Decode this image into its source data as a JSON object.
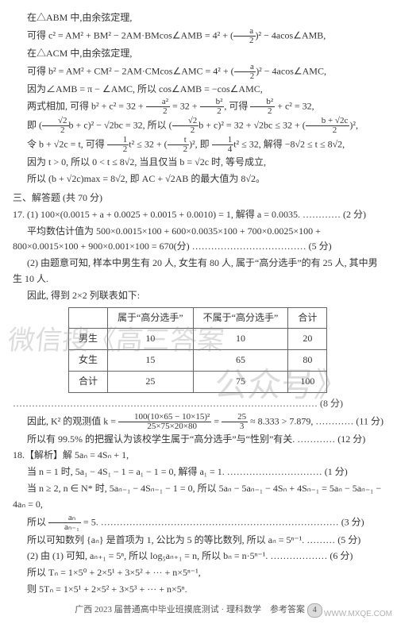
{
  "geometry": {
    "l1": "在△ABM 中,由余弦定理,",
    "l2_pre": "可得 c² = AM² + BM² − 2AM·BMcos∠AMB = 4² + (",
    "l2_frac_n": "a",
    "l2_frac_d": "2",
    "l2_post": ")² − 4acos∠AMB,",
    "l3": "在△ACM 中,由余弦定理,",
    "l4_pre": "可得 b² = AM² + CM² − 2AM·CMcos∠AMC = 4² + (",
    "l4_frac_n": "a",
    "l4_frac_d": "2",
    "l4_post": ")² − 4acos∠AMC,",
    "l5": "因为∠AMB = π − ∠AMC, 所以 cos∠AMB = −cos∠AMC,",
    "l6_pre": "两式相加, 可得 b² + c² = 32 + ",
    "l6_f1n": "a²",
    "l6_f1d": "2",
    "l6_mid": " = 32 + ",
    "l6_f2n": "b²",
    "l6_f2d": "2",
    "l6_post": ", 可得 ",
    "l6_f3n": "b²",
    "l6_f3d": "2",
    "l6_end": " + c² = 32,",
    "l7_pre": "即 (",
    "l7_f1n": "√2",
    "l7_f1d": "2",
    "l7_a": "b + c)² − √2bc = 32, 所以 (",
    "l7_f2n": "√2",
    "l7_f2d": "2",
    "l7_b": "b + c)² = 32 + √2bc ≤ 32 + (",
    "l7_f3n": "b + √2c",
    "l7_f3d": "2",
    "l7_c": ")²,",
    "l8_pre": "令 b + √2c = t, 可得 ",
    "l8_f1n": "1",
    "l8_f1d": "2",
    "l8_a": "t² ≤ 32 + (",
    "l8_f2n": "t",
    "l8_f2d": "2",
    "l8_b": ")², 即 ",
    "l8_f3n": "1",
    "l8_f3d": "4",
    "l8_c": "t² ≤ 32, 解得 −8√2 ≤ t ≤ 8√2,",
    "l9": "因为 t > 0, 所以 0 < t ≤ 8√2, 当且仅当 b = √2c 时, 等号成立,",
    "l10": "所以 (b + √2c)max = 8√2, 即 AC + √2AB 的最大值为 8√2。"
  },
  "section3_title": "三、解答题 (共 70 分)",
  "q17": {
    "p1": "17. (1) 100×(0.0015 + a + 0.0025 + 0.0015 + 0.0010) = 1, 解得 a = 0.0035. ………… (2 分)",
    "p2": "平均数估计值为 500×0.0015×100 + 600×0.0035×100 + 700×0.0025×100 + 800×0.0015×100 + 900×0.001×100 = 670(分) ……………………………… (5 分)",
    "p3": "(2) 由题意可知, 样本中男生有 20 人, 女生有 80 人, 属于“高分选手”的有 25 人, 其中男生 10 人.",
    "p4": "因此, 得到 2×2 列联表如下:",
    "table": {
      "headers": [
        "",
        "属于“高分选手”",
        "不属于“高分选手”",
        "合计"
      ],
      "rows": [
        [
          "男生",
          "10",
          "10",
          "20"
        ],
        [
          "女生",
          "15",
          "65",
          "80"
        ],
        [
          "合计",
          "25",
          "75",
          "100"
        ]
      ]
    },
    "p5": "…………………………………………………………………………………… (8 分)",
    "p6_pre": "因此, K² 的观测值 k = ",
    "p6_frac_n": "100(10×65 − 10×15)²",
    "p6_frac_d": "25×75×20×80",
    "p6_mid": " = ",
    "p6_f2n": "25",
    "p6_f2d": "3",
    "p6_post": " ≈ 8.333 > 7.879, ………… (11 分)",
    "p7": "所以有 99.5% 的把握认为该校学生属于“高分选手”与“性别”有关. ………… (12 分)"
  },
  "q18": {
    "p1": "18.【解析】解 5aₙ = 4Sₙ + 1,",
    "p2": "当 n = 1 时, 5a₁ − 4S₁ − 1 = a₁ − 1 = 0, 解得 a₁ = 1. ………………………… (1 分)",
    "p3": "当 n ≥ 2, n ∈ N* 时, 5aₙ₋₁ − 4Sₙ₋₁ − 1 = 0, 所以 5aₙ − 5aₙ₋₁ − 4Sₙ + 4Sₙ₋₁ = 5aₙ − 5aₙ₋₁ − 4aₙ = 0,",
    "p4_pre": "所以 ",
    "p4_fn": "aₙ",
    "p4_fd": "aₙ₋₁",
    "p4_post": " = 5. ………………………………………………………………… (3 分)",
    "p5": "所以可知数列 {aₙ} 是首项为 1, 公比为 5 的等比数列, 所以 aₙ = 5ⁿ⁻¹. ……… (5 分)",
    "p6": "(2) 由 (1) 可知, aₙ₊₁ = 5ⁿ, 所以 log₅aₙ₊₁ = n, 所以 bₙ = n·5ⁿ⁻¹. ……………… (6 分)",
    "p7": "所以 Tₙ = 1×5⁰ + 2×5¹ + 3×5² + ··· + n×5ⁿ⁻¹,",
    "p8": "则 5Tₙ = 1×5¹ + 2×5² + 3×5³ + ··· + n×5ⁿ."
  },
  "footer": {
    "text": "广西 2023 届普通高中毕业班摸底测试 · 理科数学　参考答案",
    "page_no": "4"
  },
  "watermarks": {
    "w1": "微信搜《高三答案",
    "w2": "公众号》"
  },
  "corner": "WWW.MXQE.COM"
}
